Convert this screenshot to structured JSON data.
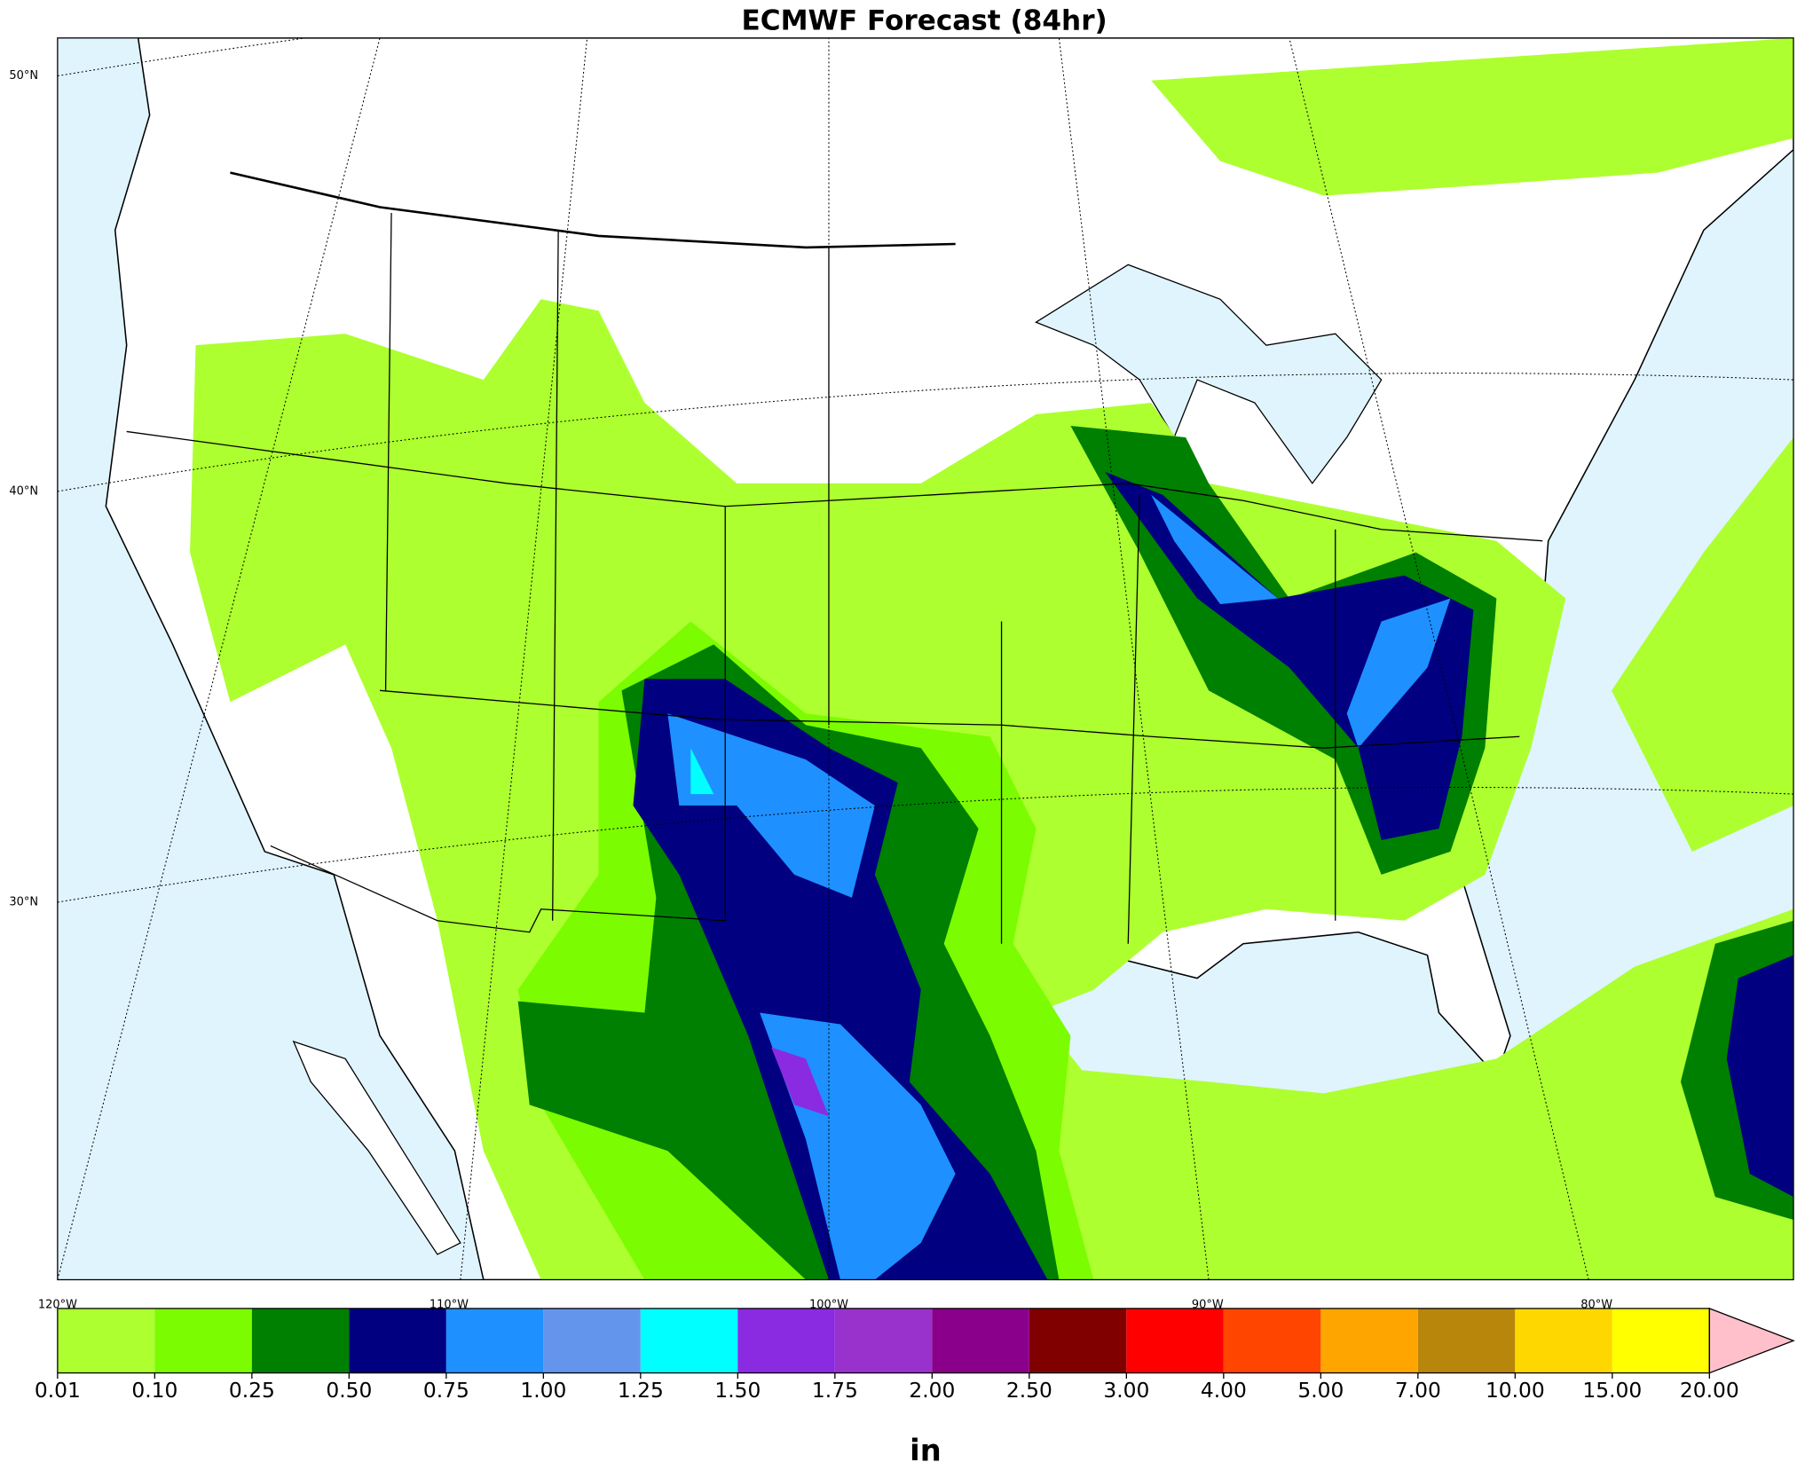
{
  "header": {
    "title": "ECMWF Forecast (84hr)"
  },
  "map": {
    "lat_labels": [
      "50°N",
      "40°N",
      "30°N"
    ],
    "lon_labels": [
      "120°W",
      "110°W",
      "100°W",
      "90°W",
      "80°W"
    ]
  },
  "colorbar": {
    "label": "in",
    "levels": [
      {
        "value": 0.01,
        "label": "0.01"
      },
      {
        "value": 0.1,
        "label": "0.10"
      },
      {
        "value": 0.25,
        "label": "0.25"
      },
      {
        "value": 0.5,
        "label": "0.50"
      },
      {
        "value": 0.75,
        "label": "0.75"
      },
      {
        "value": 1,
        "label": "1.00"
      },
      {
        "value": 1.25,
        "label": "1.25"
      },
      {
        "value": 1.5,
        "label": "1.50"
      },
      {
        "value": 1.75,
        "label": "1.75"
      },
      {
        "value": 2,
        "label": "2.00"
      },
      {
        "value": 2.5,
        "label": "2.50"
      },
      {
        "value": 3,
        "label": "3.00"
      },
      {
        "value": 4,
        "label": "4.00"
      },
      {
        "value": 5,
        "label": "5.00"
      },
      {
        "value": 7,
        "label": "7.00"
      },
      {
        "value": 10,
        "label": "10.00"
      },
      {
        "value": 15,
        "label": "15.00"
      },
      {
        "value": 20,
        "label": "20.00"
      }
    ],
    "colors": [
      "#adff2f",
      "#7cfc00",
      "#008000",
      "#000080",
      "#1e90ff",
      "#6495ed",
      "#00ffff",
      "#8a2be2",
      "#9932cc",
      "#8b008b",
      "#800000",
      "#ff0000",
      "#ff4500",
      "#ffa500",
      "#b8860b",
      "#ffd700",
      "#ffff00"
    ],
    "extend_color": "#ffc0cb"
  }
}
